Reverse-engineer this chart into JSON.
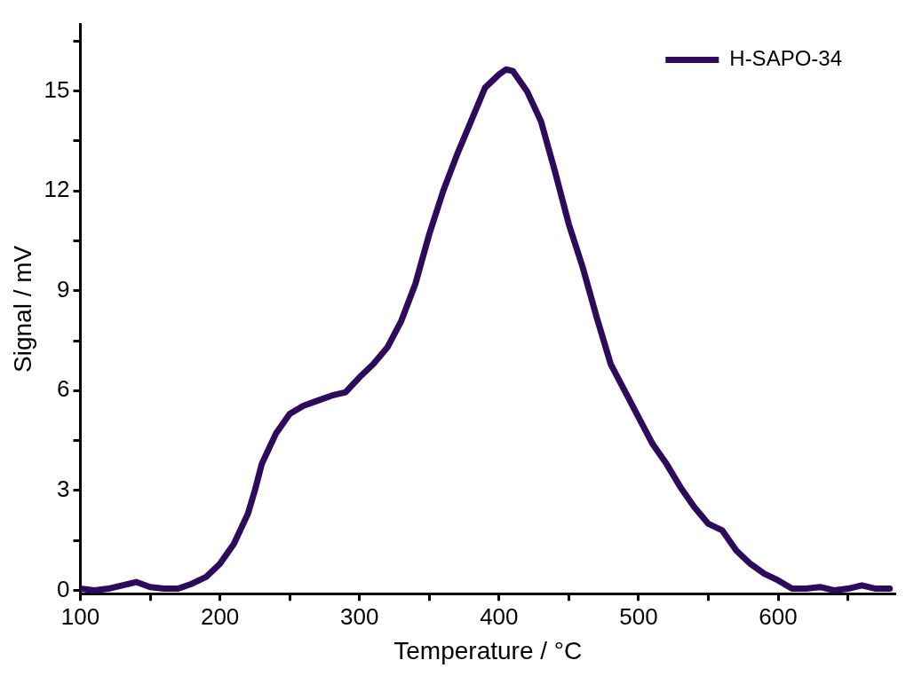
{
  "chart_data": {
    "type": "line",
    "xlabel": "Temperature / °C",
    "ylabel": "Signal / mV",
    "xlim": [
      100,
      684
    ],
    "ylim": [
      -0.1,
      17
    ],
    "xticks": [
      100,
      {
        "value": 150,
        "label": null
      },
      200,
      {
        "value": 250,
        "label": null
      },
      300,
      {
        "value": 350,
        "label": null
      },
      400,
      {
        "value": 450,
        "label": null
      },
      500,
      {
        "value": 550,
        "label": null
      },
      600,
      {
        "value": 650,
        "label": null
      }
    ],
    "yticks": [
      0,
      {
        "value": 1.5,
        "label": null
      },
      3,
      {
        "value": 4.5,
        "label": null
      },
      6,
      {
        "value": 7.5,
        "label": null
      },
      9,
      {
        "value": 10.5,
        "label": null
      },
      12,
      {
        "value": 13.5,
        "label": null
      },
      15,
      {
        "value": 16.5,
        "label": null
      }
    ],
    "grid": false,
    "legend": "top right",
    "marker": "none",
    "line_style": "solid",
    "x": [
      100,
      110,
      120,
      130,
      140,
      150,
      160,
      170,
      180,
      190,
      200,
      210,
      220,
      225,
      230,
      240,
      250,
      260,
      270,
      280,
      290,
      300,
      310,
      320,
      330,
      340,
      350,
      360,
      370,
      380,
      390,
      400,
      405,
      410,
      420,
      430,
      440,
      450,
      460,
      470,
      480,
      490,
      500,
      510,
      520,
      530,
      540,
      550,
      560,
      570,
      580,
      590,
      600,
      610,
      620,
      630,
      640,
      650,
      660,
      670,
      680
    ],
    "series": [
      {
        "name": "H-SAPO-34",
        "color": "#2e0a5c",
        "values": [
          0.05,
          0,
          0.05,
          0.15,
          0.25,
          0.1,
          0.05,
          0.05,
          0.2,
          0.4,
          0.8,
          1.4,
          2.3,
          3.0,
          3.8,
          4.7,
          5.3,
          5.55,
          5.7,
          5.85,
          5.95,
          6.4,
          6.8,
          7.3,
          8.1,
          9.2,
          10.7,
          12.0,
          13.1,
          14.1,
          15.1,
          15.5,
          15.65,
          15.6,
          15.0,
          14.1,
          12.6,
          11.0,
          9.7,
          8.2,
          6.8,
          6.0,
          5.2,
          4.4,
          3.8,
          3.1,
          2.5,
          2.0,
          1.8,
          1.2,
          0.8,
          0.5,
          0.3,
          0.05,
          0.05,
          0.1,
          0,
          0.05,
          0.15,
          0.05,
          0.05
        ]
      }
    ]
  }
}
